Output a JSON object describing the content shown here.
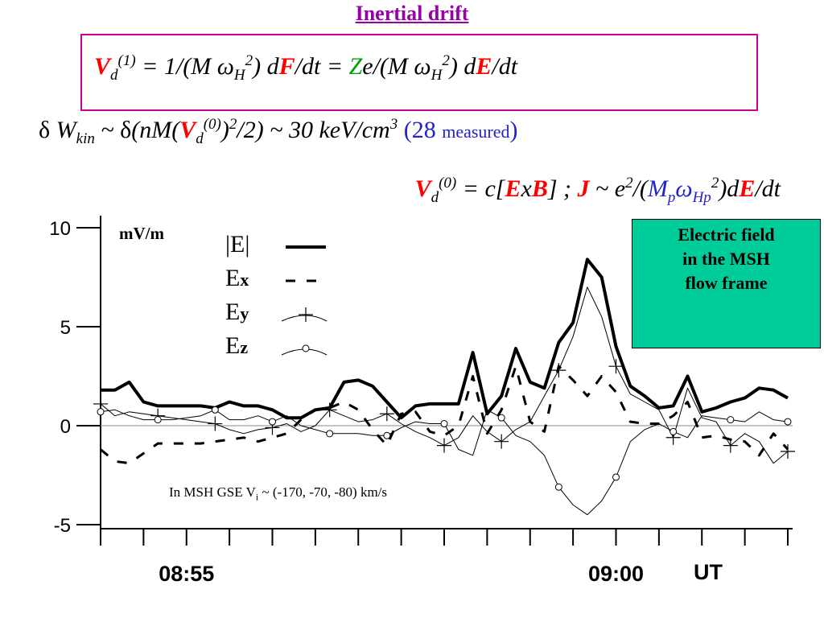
{
  "header": {
    "title": "Inertial drift",
    "eq1": [
      "V",
      "d",
      "(1)",
      " = 1/(M ",
      "ω",
      "H",
      "2",
      ") d",
      "F",
      "/dt = ",
      "Z",
      "e/(M ",
      "ω",
      "H",
      "2",
      ") d",
      "E",
      "/dt"
    ],
    "eq2": [
      "δ",
      " W",
      "kin",
      " ~ ",
      "δ",
      "(nM(",
      "V",
      "d",
      "(0)",
      ")",
      "2",
      "/2) ~ 30 keV/cm",
      "3",
      " (28 ",
      "measured",
      ")"
    ],
    "eq3": [
      "V",
      "d",
      "(0)",
      " = c[",
      "E",
      "x",
      "B",
      "] ; ",
      "J",
      " ~ e",
      "2",
      "/(",
      "M",
      "p",
      "ω",
      "Hp",
      "2",
      ")d",
      "E",
      "/dt"
    ]
  },
  "note_box": [
    "Electric field",
    "in the MSH",
    "flow frame"
  ],
  "chart_data": {
    "type": "line",
    "y_label": "mV/m",
    "x_label": "UT",
    "annotation": [
      "In MSH GSE V",
      "i",
      " ~ (-170, -70, -80) km/s"
    ],
    "categories": [
      null,
      null,
      null,
      null,
      null,
      null,
      "08:55",
      null,
      null,
      null,
      null,
      null,
      null,
      null,
      null,
      null,
      null,
      null,
      null,
      null,
      null,
      null,
      null,
      null,
      null,
      null,
      null,
      null,
      null,
      null,
      null,
      null,
      null,
      null,
      null,
      null,
      "09:00",
      null,
      null,
      null,
      null,
      null,
      null,
      null,
      null,
      null,
      null,
      null,
      null
    ],
    "ylim": [
      -5,
      10
    ],
    "yticks": [
      -5,
      0,
      5,
      10
    ],
    "series": [
      {
        "name": "|E|",
        "color": "#000000",
        "line_style": "thick",
        "marker": "none",
        "values": [
          1.8,
          1.8,
          2.2,
          1.2,
          1.0,
          1.0,
          1.0,
          1.0,
          0.9,
          1.2,
          1.0,
          1.0,
          0.8,
          0.4,
          0.4,
          0.8,
          0.9,
          2.2,
          2.3,
          2.0,
          1.2,
          0.4,
          1.0,
          1.1,
          1.1,
          1.1,
          3.7,
          0.6,
          1.5,
          3.9,
          2.2,
          1.9,
          4.2,
          5.2,
          8.4,
          7.5,
          4.0,
          2.0,
          1.5,
          0.9,
          1.0,
          2.5,
          0.7,
          0.9,
          1.2,
          1.4,
          1.9,
          1.8,
          1.4
        ]
      },
      {
        "name": "Ex",
        "color": "#000000",
        "line_style": "dashed",
        "marker": "none",
        "values": [
          -1.2,
          -1.8,
          -1.9,
          -1.4,
          -0.9,
          -0.9,
          -0.9,
          -0.9,
          -0.8,
          -0.7,
          -0.6,
          -0.8,
          -0.6,
          -0.4,
          0.3,
          0.8,
          0.9,
          1.2,
          0.8,
          -0.2,
          -1.0,
          0.6,
          0.7,
          -0.3,
          -0.5,
          0.0,
          2.5,
          -0.4,
          0.8,
          3.0,
          0.2,
          -0.3,
          3.0,
          2.3,
          1.5,
          2.5,
          1.7,
          0.2,
          0.1,
          0.1,
          0.5,
          1.2,
          -0.6,
          -0.5,
          -0.7,
          -0.8,
          -1.5,
          -0.4,
          -1.2
        ]
      },
      {
        "name": "Ey",
        "color": "#000000",
        "line_style": "thin",
        "marker": "plus",
        "values": [
          1.1,
          0.5,
          0.7,
          0.6,
          0.5,
          0.4,
          0.3,
          0.2,
          0.1,
          -0.2,
          -0.4,
          -0.2,
          -0.1,
          0.1,
          -0.3,
          0.0,
          0.8,
          0.5,
          0.2,
          0.3,
          0.6,
          0.1,
          -0.3,
          -0.6,
          -1.0,
          -0.6,
          0.5,
          -0.3,
          -0.8,
          -0.2,
          0.2,
          1.5,
          2.8,
          4.5,
          7.0,
          5.5,
          3.0,
          1.6,
          1.2,
          0.8,
          -0.6,
          1.9,
          0.4,
          0.2,
          -1.0,
          -0.4,
          -0.8,
          -1.9,
          -1.3
        ]
      },
      {
        "name": "Ez",
        "color": "#000000",
        "line_style": "thin",
        "marker": "circle",
        "values": [
          0.7,
          0.8,
          0.5,
          0.3,
          0.3,
          0.3,
          0.4,
          0.5,
          0.8,
          0.3,
          0.3,
          0.5,
          0.2,
          0.5,
          0.0,
          -0.2,
          -0.4,
          -0.4,
          -0.4,
          -0.5,
          -0.5,
          -0.1,
          0.2,
          0.1,
          0.1,
          -1.2,
          -1.5,
          0.8,
          0.4,
          -0.5,
          -0.8,
          -1.5,
          -3.1,
          -4.0,
          -4.5,
          -3.8,
          -2.6,
          -0.8,
          -0.2,
          0.1,
          -0.3,
          -0.6,
          0.5,
          0.4,
          0.3,
          0.2,
          0.7,
          0.3,
          0.2
        ]
      }
    ]
  }
}
